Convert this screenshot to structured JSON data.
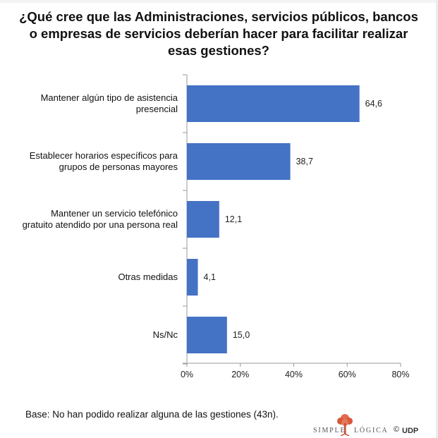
{
  "chart_data": {
    "type": "bar",
    "orientation": "horizontal",
    "title_lines": [
      "¿Qué cree que las Administraciones,  servicios públicos, bancos",
      "o empresas de servicios deberían hacer para facilitar realizar",
      "esas gestiones?"
    ],
    "categories": [
      [
        "Mantener algún tipo de asistencia",
        "presencial"
      ],
      [
        "Establecer horarios específicos para",
        "grupos de personas mayores"
      ],
      [
        "Mantener un servicio telefónico",
        "gratuito atendido por una persona real"
      ],
      [
        "Otras medidas"
      ],
      [
        "Ns/Nc"
      ]
    ],
    "values": [
      64.6,
      38.7,
      12.1,
      4.1,
      15.0
    ],
    "value_labels": [
      "64,6",
      "38,7",
      "12,1",
      "4,1",
      "15,0"
    ],
    "xlim": [
      0,
      80
    ],
    "ticks": [
      0,
      20,
      40,
      60,
      80
    ],
    "tick_labels": [
      "0%",
      "20%",
      "40%",
      "60%",
      "80%"
    ],
    "bar_color": "#4472C4"
  },
  "footnote": "Base: No han podido realizar alguna de las gestiones (43n).",
  "brand": {
    "simple": "SIMPLE",
    "logica": "LÓGICA",
    "copyright": "©",
    "udp": "UDP"
  }
}
